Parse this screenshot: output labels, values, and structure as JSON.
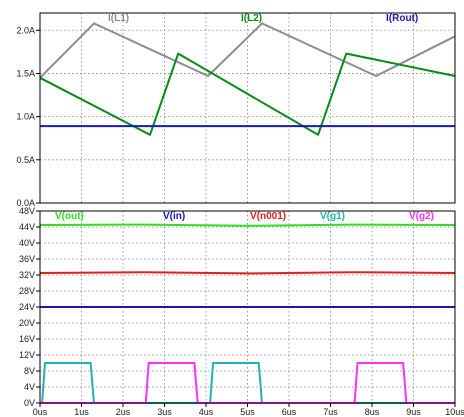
{
  "chart_data": [
    {
      "type": "line",
      "title": "",
      "xlabel": "",
      "ylabel": "",
      "xlim": [
        0,
        10
      ],
      "ylim": [
        0,
        2.2
      ],
      "grid": true,
      "legend_position": "top",
      "y_ticks": [
        {
          "value": 0.0,
          "label": "0.0A"
        },
        {
          "value": 0.5,
          "label": "0.5A"
        },
        {
          "value": 1.0,
          "label": "1.0A"
        },
        {
          "value": 1.5,
          "label": "1.5A"
        },
        {
          "value": 2.0,
          "label": "2.0A"
        }
      ],
      "series": [
        {
          "name": "I(L1)",
          "color": "#8c8c8c",
          "x": [
            0,
            1.3,
            4.05,
            5.35,
            8.1,
            10.0
          ],
          "y": [
            1.45,
            2.08,
            1.47,
            2.08,
            1.47,
            1.93
          ]
        },
        {
          "name": "I(L2)",
          "color": "#0a8a1a",
          "x": [
            0,
            2.65,
            3.33,
            6.7,
            7.38,
            10.0
          ],
          "y": [
            1.45,
            0.79,
            1.73,
            0.79,
            1.73,
            1.47
          ]
        },
        {
          "name": "I(Rout)",
          "color": "#1818b4",
          "x": [
            0,
            10.0
          ],
          "y": [
            0.89,
            0.89
          ]
        }
      ]
    },
    {
      "type": "line",
      "title": "",
      "xlabel": "",
      "ylabel": "",
      "xlim": [
        0,
        10
      ],
      "ylim": [
        0,
        48
      ],
      "grid": true,
      "legend_position": "top",
      "y_ticks": [
        {
          "value": 0,
          "label": "0V"
        },
        {
          "value": 4,
          "label": "4V"
        },
        {
          "value": 8,
          "label": "8V"
        },
        {
          "value": 12,
          "label": "12V"
        },
        {
          "value": 16,
          "label": "16V"
        },
        {
          "value": 20,
          "label": "20V"
        },
        {
          "value": 24,
          "label": "24V"
        },
        {
          "value": 28,
          "label": "28V"
        },
        {
          "value": 32,
          "label": "32V"
        },
        {
          "value": 36,
          "label": "36V"
        },
        {
          "value": 40,
          "label": "40V"
        },
        {
          "value": 44,
          "label": "44V"
        },
        {
          "value": 48,
          "label": "48V"
        }
      ],
      "x_ticks": [
        {
          "value": 0,
          "label": "0us"
        },
        {
          "value": 1,
          "label": "1us"
        },
        {
          "value": 2,
          "label": "2us"
        },
        {
          "value": 3,
          "label": "3us"
        },
        {
          "value": 4,
          "label": "4us"
        },
        {
          "value": 5,
          "label": "5us"
        },
        {
          "value": 6,
          "label": "6us"
        },
        {
          "value": 7,
          "label": "7us"
        },
        {
          "value": 8,
          "label": "8us"
        },
        {
          "value": 9,
          "label": "9us"
        },
        {
          "value": 10,
          "label": "10us"
        }
      ],
      "series": [
        {
          "name": "V(out)",
          "color": "#33dd22",
          "x": [
            0,
            2.5,
            5.0,
            7.5,
            10.0
          ],
          "y": [
            44.5,
            44.6,
            44.3,
            44.6,
            44.5
          ]
        },
        {
          "name": "V(in)",
          "color": "#1818b4",
          "x": [
            0,
            10.0
          ],
          "y": [
            24,
            24
          ]
        },
        {
          "name": "V(n001)",
          "color": "#e02020",
          "x": [
            0,
            2.5,
            5.0,
            7.5,
            10.0
          ],
          "y": [
            32.5,
            32.7,
            32.4,
            32.7,
            32.5
          ]
        },
        {
          "name": "V(g1)",
          "color": "#20b0b0",
          "x": [
            0,
            0.05,
            0.12,
            1.22,
            1.3,
            4.05,
            4.1,
            4.17,
            5.27,
            5.35,
            10.0
          ],
          "y": [
            0,
            0,
            10,
            10,
            0,
            0,
            0,
            10,
            10,
            0,
            0
          ]
        },
        {
          "name": "V(g2)",
          "color": "#ff30ff",
          "x": [
            0,
            2.55,
            2.62,
            3.72,
            3.8,
            7.58,
            7.65,
            8.75,
            8.83,
            10.0
          ],
          "y": [
            0,
            0,
            10,
            10,
            0,
            0,
            10,
            10,
            0,
            0
          ]
        }
      ]
    }
  ]
}
